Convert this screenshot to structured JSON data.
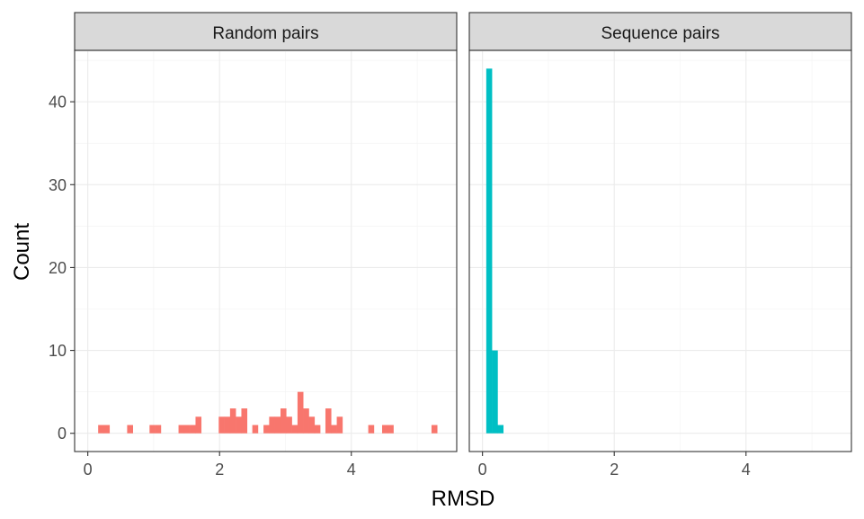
{
  "chart_data": {
    "type": "bar",
    "xlabel": "RMSD",
    "ylabel": "Count",
    "xlim": [
      -0.2,
      5.6
    ],
    "ylim": [
      -2.2,
      46.2
    ],
    "bin_width": 0.0857,
    "x_ticks": [
      0,
      2,
      4
    ],
    "y_ticks": [
      0,
      10,
      20,
      30,
      40
    ],
    "grid": true,
    "legend": "none",
    "facets": [
      {
        "label": "Random pairs",
        "color": "#F8766D",
        "bins": [
          {
            "x": 0.2,
            "count": 1
          },
          {
            "x": 0.286,
            "count": 1
          },
          {
            "x": 0.64,
            "count": 1
          },
          {
            "x": 0.98,
            "count": 1
          },
          {
            "x": 1.066,
            "count": 1
          },
          {
            "x": 1.42,
            "count": 1
          },
          {
            "x": 1.506,
            "count": 1
          },
          {
            "x": 1.592,
            "count": 1
          },
          {
            "x": 1.678,
            "count": 2
          },
          {
            "x": 2.03,
            "count": 2
          },
          {
            "x": 2.116,
            "count": 2
          },
          {
            "x": 2.202,
            "count": 3
          },
          {
            "x": 2.288,
            "count": 2
          },
          {
            "x": 2.374,
            "count": 3
          },
          {
            "x": 2.54,
            "count": 1
          },
          {
            "x": 2.71,
            "count": 1
          },
          {
            "x": 2.796,
            "count": 2
          },
          {
            "x": 2.882,
            "count": 2
          },
          {
            "x": 2.968,
            "count": 3
          },
          {
            "x": 3.054,
            "count": 2
          },
          {
            "x": 3.14,
            "count": 1
          },
          {
            "x": 3.226,
            "count": 5
          },
          {
            "x": 3.312,
            "count": 3
          },
          {
            "x": 3.398,
            "count": 2
          },
          {
            "x": 3.484,
            "count": 1
          },
          {
            "x": 3.65,
            "count": 3
          },
          {
            "x": 3.736,
            "count": 1
          },
          {
            "x": 3.822,
            "count": 2
          },
          {
            "x": 4.3,
            "count": 1
          },
          {
            "x": 4.51,
            "count": 1
          },
          {
            "x": 4.596,
            "count": 1
          },
          {
            "x": 5.26,
            "count": 1
          }
        ]
      },
      {
        "label": "Sequence pairs",
        "color": "#00BFC4",
        "bins": [
          {
            "x": 0.1,
            "count": 44
          },
          {
            "x": 0.186,
            "count": 10
          },
          {
            "x": 0.272,
            "count": 1
          }
        ]
      }
    ]
  }
}
